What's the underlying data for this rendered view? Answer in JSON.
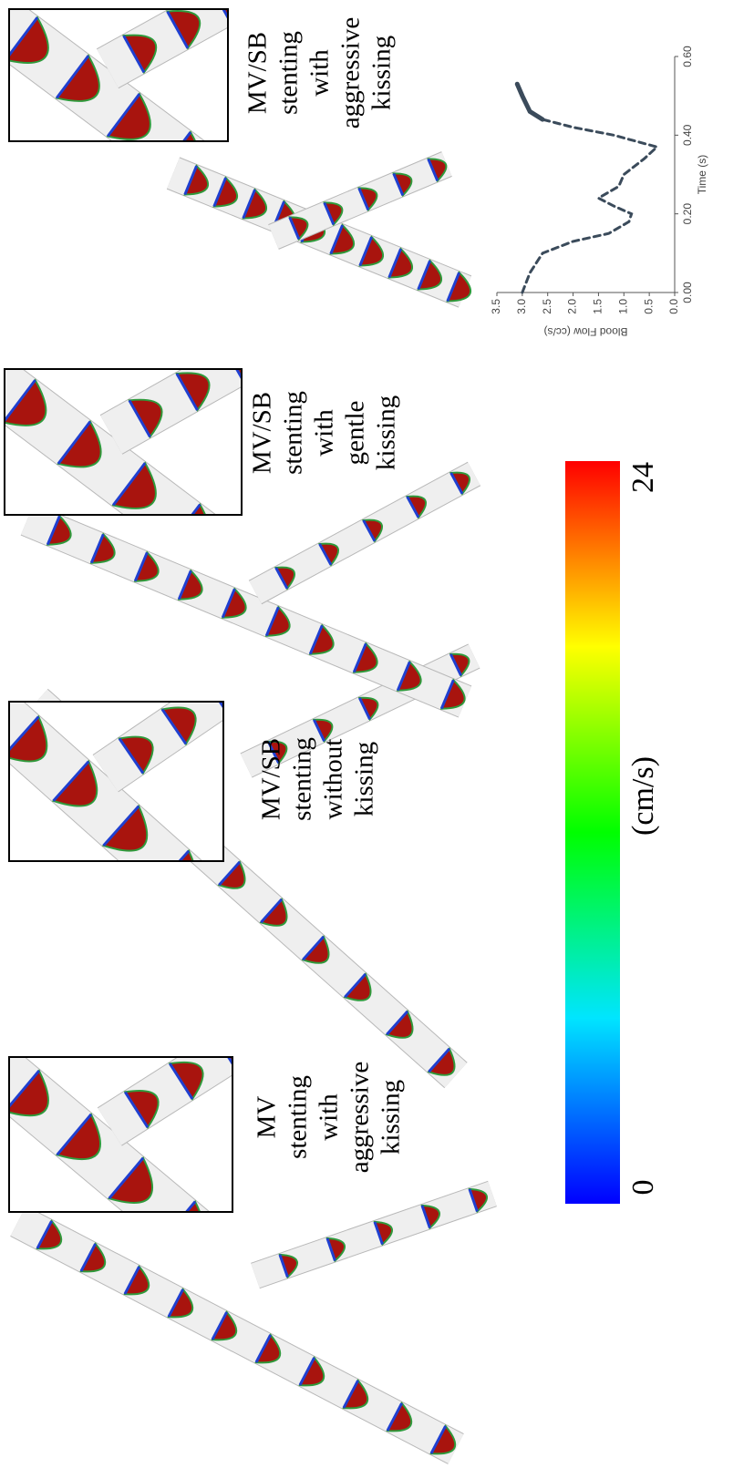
{
  "panels": [
    {
      "label": [
        "MV",
        "stenting",
        "with",
        "aggressive",
        "kissing"
      ]
    },
    {
      "label": [
        "MV/SB",
        "stenting",
        "without",
        "kissing"
      ]
    },
    {
      "label": [
        "MV/SB",
        "stenting",
        "with",
        "gentle",
        "kissing"
      ]
    },
    {
      "label": [
        "MV/SB",
        "stenting",
        "with",
        "aggressive",
        "kissing"
      ]
    }
  ],
  "colorbar": {
    "range": [
      0,
      24
    ],
    "ticks": [
      0,
      24
    ],
    "label": "(cm/s)"
  },
  "chart_data": {
    "type": "line",
    "xlabel": "Time (s)",
    "ylabel": "Blood Flow (cc/s)",
    "xlim": [
      0,
      0.6
    ],
    "ylim": [
      0,
      3.5
    ],
    "xticks": [
      {
        "value": 0,
        "label": "0.00"
      },
      {
        "value": 0.2,
        "label": "0.20"
      },
      {
        "value": 0.4,
        "label": "0.40"
      },
      {
        "value": 0.6,
        "label": "0.60"
      }
    ],
    "yticks": [
      {
        "value": 0,
        "label": "0.0"
      },
      0.5,
      {
        "value": 1,
        "label": "1.0"
      },
      1.5,
      {
        "value": 2,
        "label": "2.0"
      },
      2.5,
      {
        "value": 3,
        "label": "3.0"
      },
      3.5
    ],
    "series": [
      {
        "color": "#3b4b5b",
        "dashed": true,
        "x": [
          0,
          0.05,
          0.1,
          0.13,
          0.15,
          0.18,
          0.2,
          0.22,
          0.24,
          0.27,
          0.3,
          0.34,
          0.37,
          0.4,
          0.42,
          0.44
        ],
        "values": [
          3.0,
          2.85,
          2.6,
          2.0,
          1.3,
          0.9,
          0.85,
          1.2,
          1.5,
          1.1,
          1.0,
          0.6,
          0.35,
          1.2,
          2.0,
          2.6
        ]
      },
      {
        "color": "#3b4b5b",
        "dashed": false,
        "x": [
          0.44,
          0.46,
          0.5,
          0.53
        ],
        "values": [
          2.6,
          2.85,
          3.0,
          3.1
        ]
      }
    ]
  }
}
